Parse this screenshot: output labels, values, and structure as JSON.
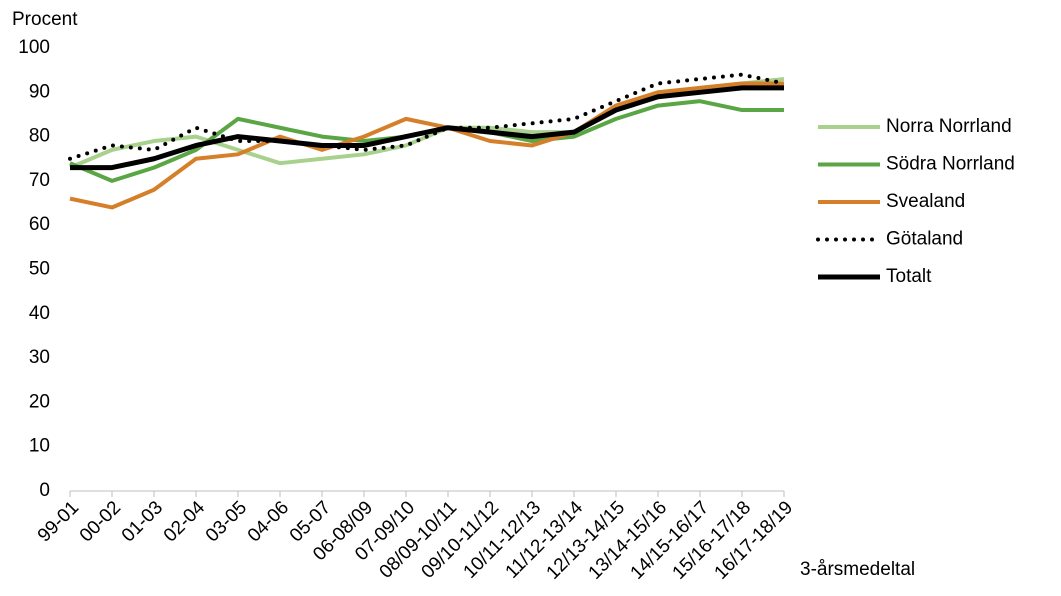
{
  "chart_data": {
    "type": "line",
    "y_label": "Procent",
    "x_label": "3-årsmedeltal",
    "categories": [
      "99-01",
      "00-02",
      "01-03",
      "02-04",
      "03-05",
      "04-06",
      "05-07",
      "06-08/09",
      "07-09/10",
      "08/09-10/11",
      "09/10-11/12",
      "10/11-12/13",
      "11/12-13/14",
      "12/13-14/15",
      "13/14-15/16",
      "14/15-16/17",
      "15/16-17/18",
      "16/17-18/19"
    ],
    "series": [
      {
        "name": "Norra Norrland",
        "color": "#a9d18e",
        "values": [
          73,
          77,
          79,
          80,
          77,
          74,
          75,
          76,
          78,
          82,
          82,
          81,
          81,
          87,
          89,
          91,
          92,
          93
        ]
      },
      {
        "name": "Södra Norrland",
        "color": "#5aa544",
        "values": [
          74,
          70,
          73,
          77,
          84,
          82,
          80,
          79,
          80,
          82,
          81,
          79,
          80,
          84,
          87,
          88,
          86,
          86
        ]
      },
      {
        "name": "Svealand",
        "color": "#d57f2a",
        "values": [
          66,
          64,
          68,
          75,
          76,
          80,
          77,
          80,
          84,
          82,
          79,
          78,
          81,
          87,
          90,
          91,
          92,
          92
        ]
      },
      {
        "name": "Götaland",
        "color": "#000000",
        "dash": "dotted",
        "values": [
          75,
          78,
          77,
          82,
          79,
          79,
          78,
          77,
          78,
          82,
          82,
          83,
          84,
          88,
          92,
          93,
          94,
          92
        ]
      },
      {
        "name": "Totalt",
        "color": "#000000",
        "values": [
          73,
          73,
          75,
          78,
          80,
          79,
          78,
          78,
          80,
          82,
          81,
          80,
          81,
          86,
          89,
          90,
          91,
          91
        ]
      }
    ],
    "ylim": [
      0,
      100
    ],
    "yticks": [
      0,
      10,
      20,
      30,
      40,
      50,
      60,
      70,
      80,
      90,
      100
    ],
    "grid": false,
    "legend": "right"
  }
}
